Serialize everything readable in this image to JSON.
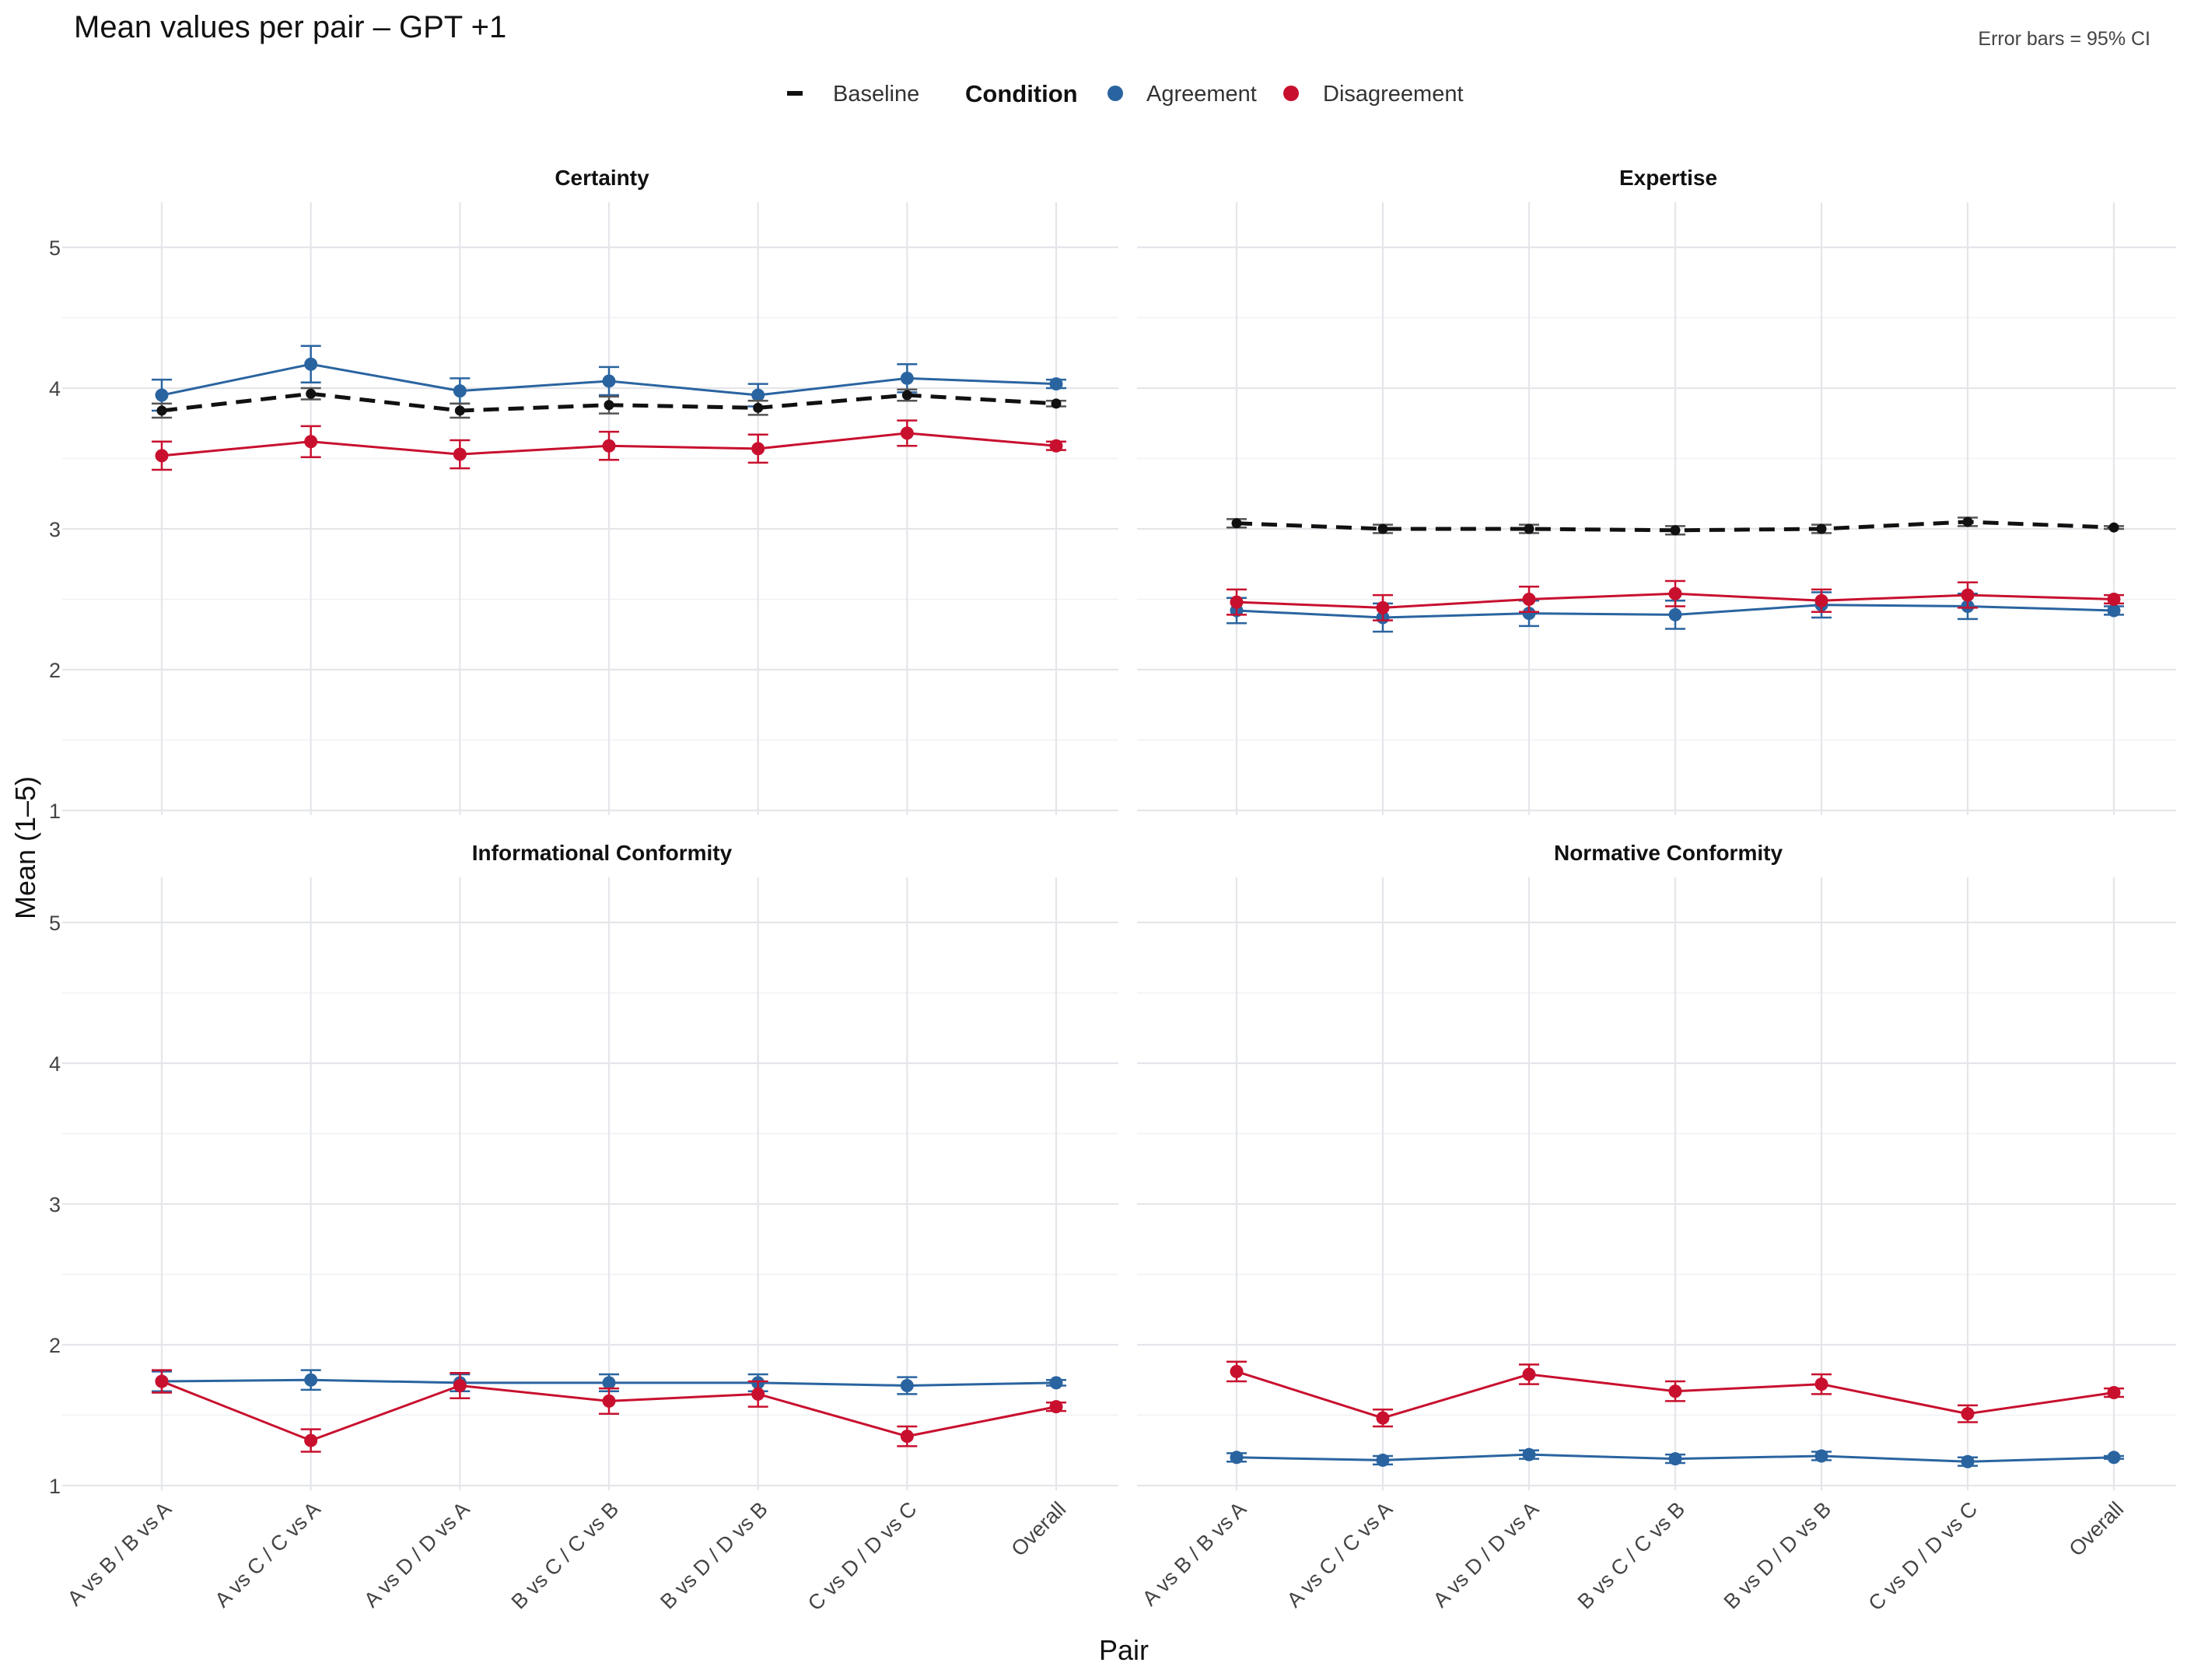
{
  "title": "Mean values per pair – GPT +1",
  "note": "Error bars = 95% CI",
  "legend": {
    "baseline_label": "Baseline",
    "condition_title": "Condition",
    "agreement_label": "Agreement",
    "disagreement_label": "Disagreement"
  },
  "colors": {
    "agreement": "#2a64a0",
    "disagreement": "#c8102e",
    "baseline": "#111111"
  },
  "chart_data": {
    "type": "line",
    "xlabel": "Pair",
    "ylabel": "Mean (1–5)",
    "ylim": [
      1,
      5
    ],
    "yticks": [
      "1",
      "2",
      "3",
      "4",
      "5"
    ],
    "grid": true,
    "legend_position": "top",
    "categories": [
      "A vs B / B vs A",
      "A vs C / C vs A",
      "A vs D / D vs A",
      "B vs C / C vs B",
      "B vs D / D vs B",
      "C vs D / D vs C",
      "Overall"
    ],
    "panels": [
      {
        "title": "Certainty",
        "series": [
          {
            "name": "Agreement",
            "values": [
              3.95,
              4.17,
              3.98,
              4.05,
              3.95,
              4.07,
              4.03
            ],
            "ci": [
              0.11,
              0.13,
              0.09,
              0.1,
              0.08,
              0.1,
              0.03
            ]
          },
          {
            "name": "Disagreement",
            "values": [
              3.52,
              3.62,
              3.53,
              3.59,
              3.57,
              3.68,
              3.59
            ],
            "ci": [
              0.1,
              0.11,
              0.1,
              0.1,
              0.1,
              0.09,
              0.03
            ]
          },
          {
            "name": "Baseline",
            "values": [
              3.84,
              3.96,
              3.84,
              3.88,
              3.86,
              3.95,
              3.89
            ],
            "ci": [
              0.05,
              0.04,
              0.05,
              0.06,
              0.05,
              0.04,
              0.02
            ]
          }
        ]
      },
      {
        "title": "Expertise",
        "series": [
          {
            "name": "Agreement",
            "values": [
              2.42,
              2.37,
              2.4,
              2.39,
              2.46,
              2.45,
              2.42
            ],
            "ci": [
              0.09,
              0.1,
              0.09,
              0.1,
              0.09,
              0.09,
              0.03
            ]
          },
          {
            "name": "Disagreement",
            "values": [
              2.48,
              2.44,
              2.5,
              2.54,
              2.49,
              2.53,
              2.5
            ],
            "ci": [
              0.09,
              0.09,
              0.09,
              0.09,
              0.08,
              0.09,
              0.03
            ]
          },
          {
            "name": "Baseline",
            "values": [
              3.04,
              3.0,
              3.0,
              2.99,
              3.0,
              3.05,
              3.01
            ],
            "ci": [
              0.03,
              0.03,
              0.03,
              0.03,
              0.03,
              0.03,
              0.01
            ]
          }
        ]
      },
      {
        "title": "Informational Conformity",
        "series": [
          {
            "name": "Agreement",
            "values": [
              1.74,
              1.75,
              1.73,
              1.73,
              1.73,
              1.71,
              1.73
            ],
            "ci": [
              0.07,
              0.07,
              0.06,
              0.06,
              0.06,
              0.06,
              0.02
            ]
          },
          {
            "name": "Disagreement",
            "values": [
              1.74,
              1.32,
              1.71,
              1.6,
              1.65,
              1.35,
              1.56
            ],
            "ci": [
              0.08,
              0.08,
              0.09,
              0.09,
              0.09,
              0.07,
              0.03
            ]
          }
        ]
      },
      {
        "title": "Normative Conformity",
        "series": [
          {
            "name": "Agreement",
            "values": [
              1.2,
              1.18,
              1.22,
              1.19,
              1.21,
              1.17,
              1.2
            ],
            "ci": [
              0.03,
              0.03,
              0.03,
              0.03,
              0.03,
              0.03,
              0.01
            ]
          },
          {
            "name": "Disagreement",
            "values": [
              1.81,
              1.48,
              1.79,
              1.67,
              1.72,
              1.51,
              1.66
            ],
            "ci": [
              0.07,
              0.06,
              0.07,
              0.07,
              0.07,
              0.06,
              0.03
            ]
          }
        ]
      }
    ]
  }
}
